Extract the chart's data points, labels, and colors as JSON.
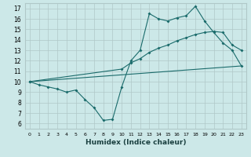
{
  "xlabel": "Humidex (Indice chaleur)",
  "background_color": "#cce8e8",
  "grid_color": "#b0c8c8",
  "line_color": "#1a6b6b",
  "xlim": [
    -0.5,
    23.5
  ],
  "ylim": [
    5.5,
    17.5
  ],
  "xticks": [
    0,
    1,
    2,
    3,
    4,
    5,
    6,
    7,
    8,
    9,
    10,
    11,
    12,
    13,
    14,
    15,
    16,
    17,
    18,
    19,
    20,
    21,
    22,
    23
  ],
  "yticks": [
    6,
    7,
    8,
    9,
    10,
    11,
    12,
    13,
    14,
    15,
    16,
    17
  ],
  "line1_x": [
    0,
    1,
    2,
    3,
    4,
    5,
    6,
    7,
    8,
    9,
    10,
    11,
    12,
    13,
    14,
    15,
    16,
    17,
    18,
    19,
    20,
    21,
    22,
    23
  ],
  "line1_y": [
    10.0,
    9.7,
    9.5,
    9.3,
    9.0,
    9.2,
    8.3,
    7.5,
    6.3,
    6.4,
    9.5,
    12.0,
    13.0,
    16.5,
    16.0,
    15.8,
    16.1,
    16.3,
    17.2,
    15.8,
    14.7,
    13.7,
    13.0,
    11.5
  ],
  "line2_x": [
    0,
    10,
    11,
    12,
    13,
    14,
    15,
    16,
    17,
    18,
    19,
    20,
    21,
    22,
    23
  ],
  "line2_y": [
    10.0,
    11.2,
    11.8,
    12.2,
    12.8,
    13.2,
    13.5,
    13.9,
    14.2,
    14.5,
    14.7,
    14.8,
    14.7,
    13.5,
    13.0
  ],
  "line3_x": [
    0,
    23
  ],
  "line3_y": [
    10.0,
    11.5
  ]
}
